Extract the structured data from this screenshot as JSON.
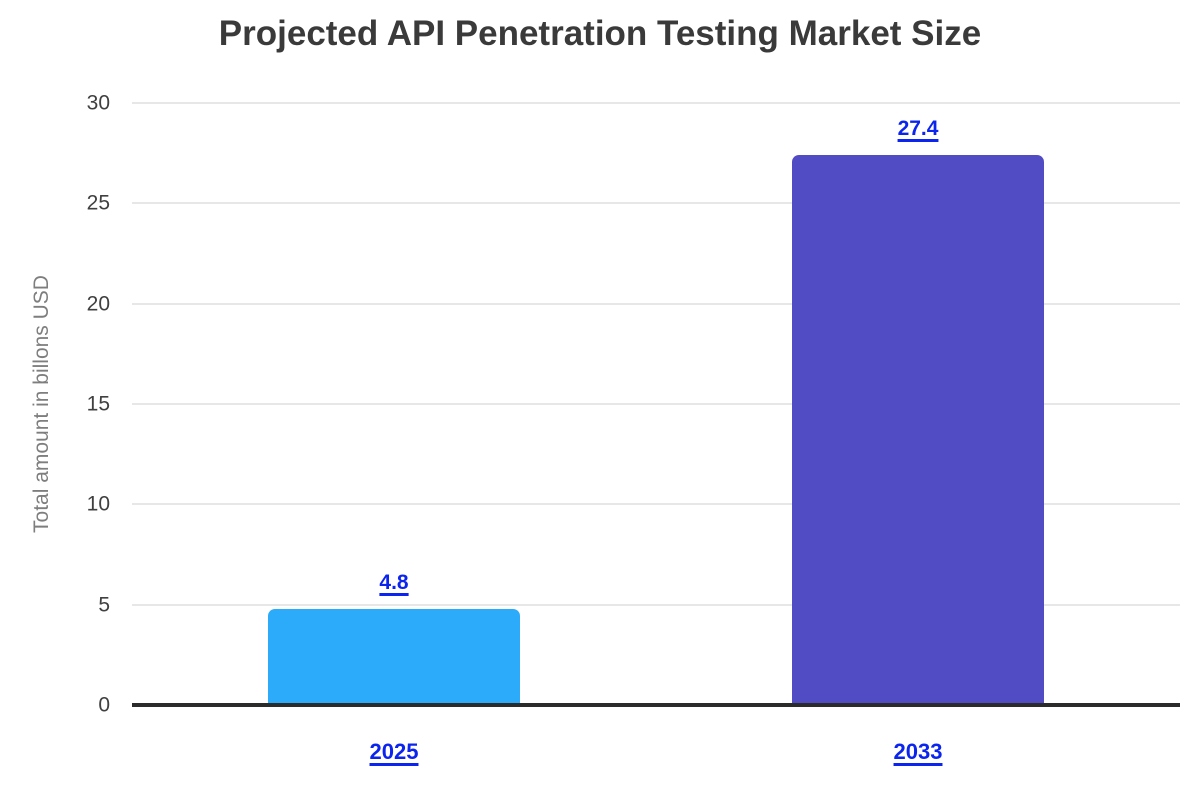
{
  "chart_data": {
    "type": "bar",
    "title": "Projected API Penetration Testing Market Size",
    "categories": [
      "2025",
      "2033"
    ],
    "values": [
      4.8,
      27.4
    ],
    "data_labels": [
      "4.8",
      "27.4"
    ],
    "xlabel": "",
    "ylabel": "Total amount in billons USD",
    "ylim": [
      0,
      30
    ],
    "yticks": [
      0,
      5,
      10,
      15,
      20,
      25,
      30
    ],
    "grid": "horizontal",
    "legend_position": "none",
    "bar_colors": [
      "#2BABFA",
      "#524CC4"
    ],
    "data_label_color": "#0B24EE",
    "category_label_color": "#0B24EE",
    "title_color": "#3A3A3A",
    "tick_label_color": "#404040",
    "ylabel_color": "#7E7E7E",
    "gridline_color": "#E7E7E7",
    "axis_line_color": "#2B2B2B",
    "background_color": "#FFFFFF"
  }
}
